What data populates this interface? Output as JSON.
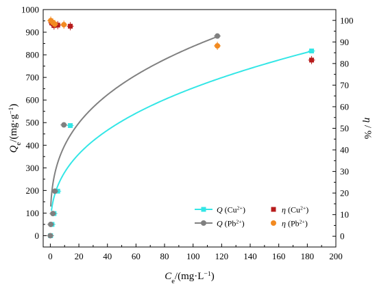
{
  "chart_data": {
    "type": "scatter",
    "xlabel": {
      "main": "C",
      "sub": "e",
      "rest": "/(mg·L",
      "sup": "−1",
      "end": ")"
    },
    "ylabel_left": {
      "main": "Q",
      "sub": "e",
      "rest": "/(mg·g",
      "sup": "−1",
      "end": ")"
    },
    "ylabel_right": {
      "main": "η",
      "rest": " / %"
    },
    "x_ticks": [
      "0",
      "20",
      "40",
      "60",
      "80",
      "100",
      "120",
      "140",
      "160",
      "180",
      "200"
    ],
    "y_left_ticks": [
      "0",
      "100",
      "200",
      "300",
      "400",
      "500",
      "600",
      "700",
      "800",
      "900",
      "1000"
    ],
    "y_right_ticks": [
      "0",
      "10",
      "20",
      "30",
      "40",
      "50",
      "60",
      "70",
      "80",
      "90",
      "100"
    ],
    "xlim": [
      -5,
      200
    ],
    "ylim_left": [
      -50,
      1000
    ],
    "ylim_right": [
      -5,
      105
    ],
    "legend_position": "bottom-right",
    "series": [
      {
        "name": {
          "main": "Q",
          "rest": " (Cu",
          "sup": "2+",
          "end": ")"
        },
        "axis": "left",
        "marker": "square",
        "color": "#33e6e6",
        "fit": "line",
        "x": [
          0.2,
          1.2,
          2.6,
          5.2,
          14.0,
          183.0
        ],
        "y": [
          0,
          50,
          98,
          197,
          487,
          817
        ]
      },
      {
        "name": {
          "main": "Q",
          "rest": " (Pb",
          "sup": "2+",
          "end": ")"
        },
        "axis": "left",
        "marker": "circle",
        "color": "#808080",
        "fit": "line",
        "x": [
          0.0,
          0.3,
          1.8,
          3.2,
          9.5,
          117.0
        ],
        "y": [
          0,
          50,
          98,
          197,
          490,
          883
        ]
      },
      {
        "name": {
          "main": "η",
          "rest": " (Cu",
          "sup": "2+",
          "end": ")"
        },
        "axis": "right",
        "marker": "square",
        "color": "#b71c1c",
        "fit": "none",
        "x": [
          1.0,
          2.6,
          5.2,
          14.0,
          183.0
        ],
        "y": [
          98.8,
          97.6,
          97.8,
          97.3,
          81.6
        ]
      },
      {
        "name": {
          "main": "η",
          "rest": " (Pb",
          "sup": "2+",
          "end": ")"
        },
        "axis": "right",
        "marker": "circle",
        "color": "#f28a20",
        "fit": "none",
        "x": [
          0.3,
          1.8,
          3.2,
          9.5,
          117.0
        ],
        "y": [
          99.9,
          99.0,
          98.3,
          98.0,
          88.2
        ]
      }
    ],
    "fits": [
      {
        "series": 0,
        "model": "freundlich",
        "k": 120.0,
        "n": 0.368,
        "x_range": [
          0.8,
          183.0
        ],
        "color": "#33e6e6"
      },
      {
        "series": 1,
        "model": "freundlich",
        "k": 190.0,
        "n": 0.322,
        "x_range": [
          0.3,
          117.0
        ],
        "color": "#808080"
      }
    ]
  }
}
